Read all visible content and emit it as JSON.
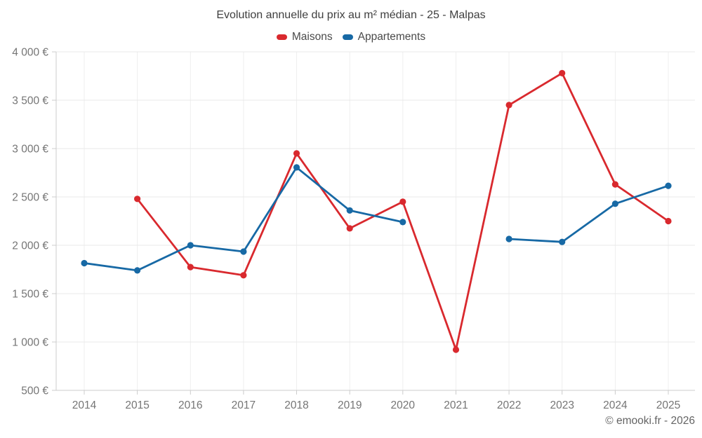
{
  "title": "Evolution annuelle du prix au m² médian - 25 - Malpas",
  "copyright": "© emooki.fr - 2026",
  "legend": [
    {
      "label": "Maisons",
      "color": "#d9292e"
    },
    {
      "label": "Appartements",
      "color": "#1769a5"
    }
  ],
  "chart_data": {
    "type": "line",
    "title": "Evolution annuelle du prix au m² médian - 25 - Malpas",
    "x": [
      "2014",
      "2015",
      "2016",
      "2017",
      "2018",
      "2019",
      "2020",
      "2021",
      "2022",
      "2023",
      "2024",
      "2025"
    ],
    "series": [
      {
        "name": "Maisons",
        "color": "#d9292e",
        "values": [
          null,
          2480,
          1775,
          1690,
          2950,
          2175,
          2450,
          920,
          3450,
          3780,
          2630,
          2250
        ]
      },
      {
        "name": "Appartements",
        "color": "#1769a5",
        "values": [
          1815,
          1740,
          2000,
          1935,
          2805,
          2360,
          2240,
          null,
          2065,
          2035,
          2430,
          2615
        ]
      }
    ],
    "xlabel": "",
    "ylabel": "",
    "ylim": [
      500,
      4000
    ],
    "ytick_step": 500,
    "ytick_labels": [
      "500 €",
      "1 000 €",
      "1 500 €",
      "2 000 €",
      "2 500 €",
      "3 000 €",
      "3 500 €",
      "4 000 €"
    ],
    "grid": true,
    "legend_position": "top",
    "currency": "€"
  },
  "colors": {
    "grid_h": "#e8e8e8",
    "grid_v": "#efefef",
    "axis": "#cccccc",
    "text_title": "#3f3f3f",
    "text_axis": "#757575",
    "text_copyright": "#646464",
    "background": "#ffffff"
  }
}
